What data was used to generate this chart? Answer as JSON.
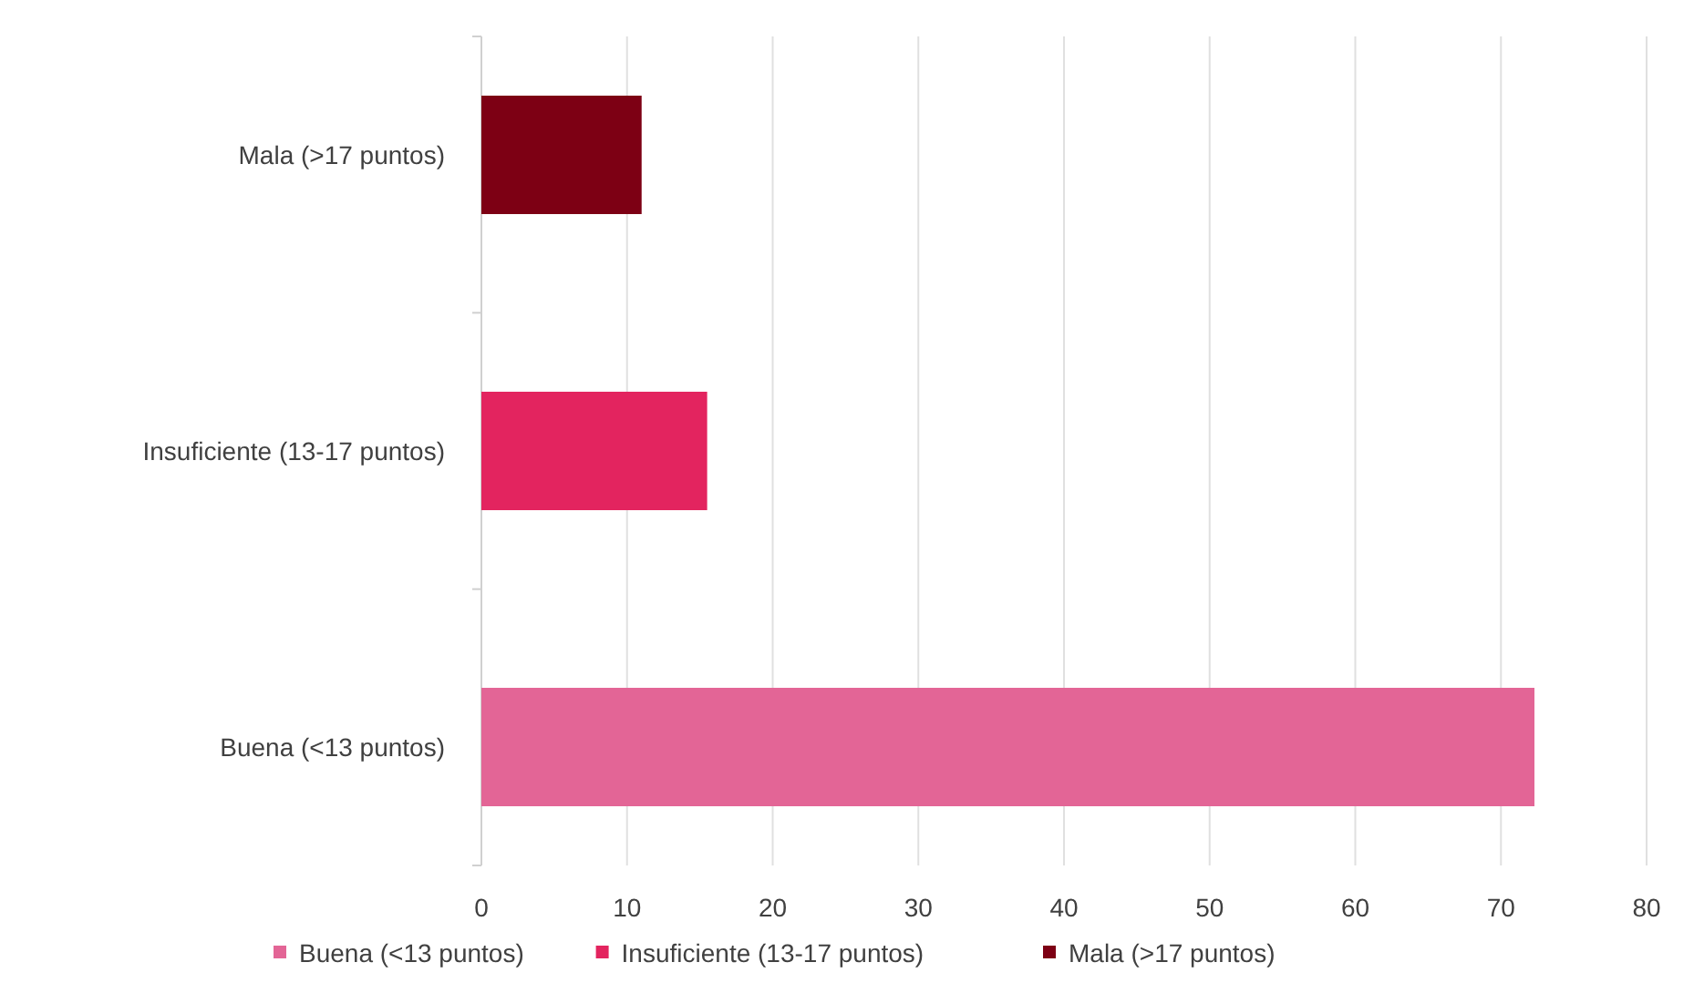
{
  "chart_data": {
    "type": "bar",
    "orientation": "horizontal",
    "categories": [
      "Mala (>17 puntos)",
      "Insuficiente (13-17 puntos)",
      "Buena (<13 puntos)"
    ],
    "series": [
      {
        "name": "Buena (<13 puntos)",
        "color": "#e36596",
        "values": [
          null,
          null,
          72.3
        ]
      },
      {
        "name": "Insuficiente (13-17 puntos)",
        "color": "#e3245f",
        "values": [
          null,
          15.5,
          null
        ]
      },
      {
        "name": "Mala (>17 puntos)",
        "color": "#7d0014",
        "values": [
          11,
          null,
          null
        ]
      }
    ],
    "xlim": [
      0,
      80
    ],
    "xticks": [
      0,
      10,
      20,
      30,
      40,
      50,
      60,
      70,
      80
    ],
    "grid": "x",
    "legend": "bottom"
  }
}
